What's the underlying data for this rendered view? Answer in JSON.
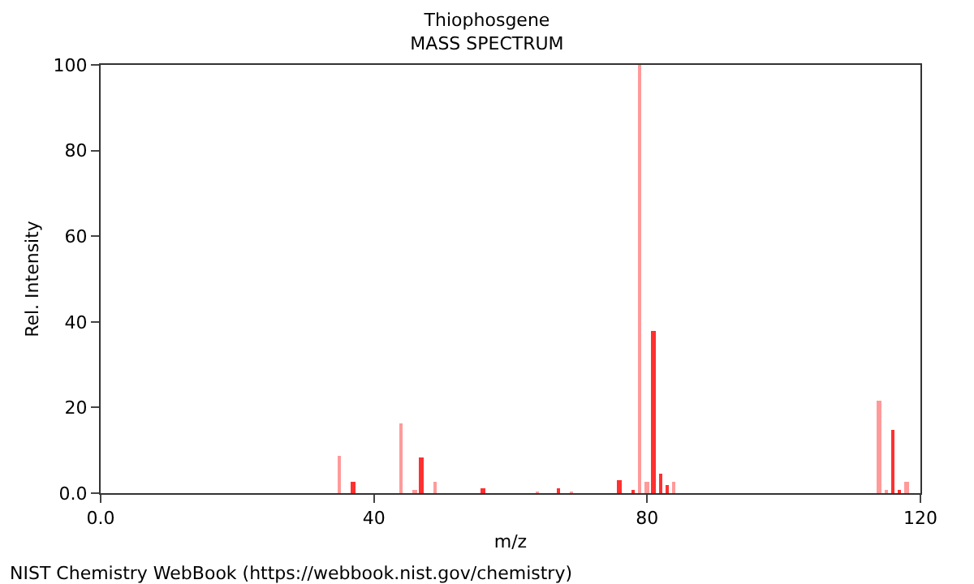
{
  "chart_data": {
    "type": "bar",
    "title": "Thiophosgene",
    "subtitle": "MASS SPECTRUM",
    "xlabel": "m/z",
    "ylabel": "Rel. Intensity",
    "annotations": [
      "NIST Chemistry WebBook (https://webbook.nist.gov/chemistry)"
    ],
    "x": [
      35,
      37,
      44,
      46,
      47,
      49,
      56,
      64,
      67,
      69,
      76,
      78,
      79,
      80,
      81,
      82,
      83,
      84,
      114,
      115,
      116,
      117,
      118
    ],
    "values": [
      8.8,
      2.8,
      16.3,
      0.9,
      8.3,
      2.8,
      1,
      0.3,
      1,
      0.3,
      3.1,
      0.5,
      100,
      2.8,
      38,
      4.5,
      1.8,
      2.7,
      21.7,
      0.5,
      14.8,
      0.5,
      2.8
    ],
    "colors": [
      "#ff9a9a",
      "#ff3030",
      "#ff9a9a",
      "#ff9a9a",
      "#ff3030",
      "#ff9a9a",
      "#ff3030",
      "#ff9a9a",
      "#ff3030",
      "#ff9a9a",
      "#ff3030",
      "#ff3030",
      "#ff9a9a",
      "#ff9a9a",
      "#ff3030",
      "#ff3030",
      "#ff3030",
      "#ff9a9a",
      "#ff9a9a",
      "#ff9a9a",
      "#ff3030",
      "#ff3030",
      "#ff9a9a"
    ],
    "xlim": [
      0,
      120
    ],
    "xticks": [
      {
        "value": 0,
        "label": "0.0"
      },
      40,
      80,
      120
    ],
    "ylim": [
      0,
      100
    ],
    "yticks": [
      {
        "value": 0,
        "label": "0.0"
      },
      20,
      40,
      60,
      80,
      100
    ],
    "grid": false
  }
}
